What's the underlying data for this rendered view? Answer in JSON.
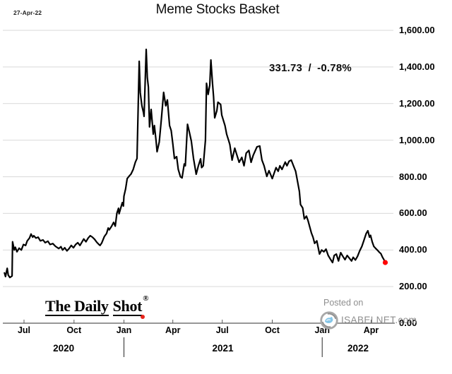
{
  "window": {
    "date_label": "27-Apr-22"
  },
  "chart_data": {
    "type": "line",
    "title": "Meme Stocks Basket",
    "annotation": {
      "text": "331.73 / -0.78%",
      "value": 331.73,
      "change_pct": -0.78
    },
    "grid": true,
    "legend": false,
    "x_axis": {
      "unit": "days_since_2020-06-01",
      "range": [
        -9,
        710
      ],
      "ticks": [
        {
          "t": 30,
          "label": "Jul"
        },
        {
          "t": 122,
          "label": "Oct"
        },
        {
          "t": 214,
          "label": "Jan"
        },
        {
          "t": 304,
          "label": "Apr"
        },
        {
          "t": 395,
          "label": "Jul"
        },
        {
          "t": 487,
          "label": "Oct"
        },
        {
          "t": 579,
          "label": "Jan"
        },
        {
          "t": 669,
          "label": "Apr"
        }
      ],
      "year_labels": [
        {
          "t": 103,
          "label": "2020"
        },
        {
          "t": 396,
          "label": "2021"
        },
        {
          "t": 645,
          "label": "2022"
        }
      ],
      "year_separators": [
        214,
        579
      ]
    },
    "y_axis": {
      "range": [
        0,
        1600
      ],
      "tick_step": 200,
      "tick_labels": [
        "0.00",
        "200.00",
        "400.00",
        "600.00",
        "800.00",
        "1,000.00",
        "1,200.00",
        "1,400.00",
        "1,600.00"
      ]
    },
    "series": [
      {
        "name": "Meme Stocks Basket",
        "color": "#000000",
        "points": [
          [
            -6,
            275
          ],
          [
            -4,
            255
          ],
          [
            -1,
            300
          ],
          [
            1,
            262
          ],
          [
            4,
            250
          ],
          [
            8,
            258
          ],
          [
            9,
            445
          ],
          [
            12,
            400
          ],
          [
            14,
            415
          ],
          [
            17,
            390
          ],
          [
            21,
            410
          ],
          [
            25,
            400
          ],
          [
            29,
            430
          ],
          [
            33,
            425
          ],
          [
            36,
            450
          ],
          [
            40,
            465
          ],
          [
            43,
            487
          ],
          [
            46,
            470
          ],
          [
            48,
            478
          ],
          [
            52,
            465
          ],
          [
            56,
            470
          ],
          [
            60,
            450
          ],
          [
            65,
            455
          ],
          [
            69,
            440
          ],
          [
            74,
            448
          ],
          [
            78,
            430
          ],
          [
            83,
            435
          ],
          [
            88,
            420
          ],
          [
            94,
            408
          ],
          [
            98,
            418
          ],
          [
            101,
            400
          ],
          [
            105,
            412
          ],
          [
            109,
            395
          ],
          [
            113,
            408
          ],
          [
            117,
            425
          ],
          [
            121,
            412
          ],
          [
            125,
            430
          ],
          [
            129,
            440
          ],
          [
            133,
            425
          ],
          [
            137,
            445
          ],
          [
            140,
            460
          ],
          [
            144,
            445
          ],
          [
            148,
            465
          ],
          [
            152,
            478
          ],
          [
            156,
            470
          ],
          [
            160,
            458
          ],
          [
            164,
            442
          ],
          [
            168,
            430
          ],
          [
            170,
            425
          ],
          [
            173,
            438
          ],
          [
            178,
            474
          ],
          [
            182,
            490
          ],
          [
            185,
            520
          ],
          [
            187,
            510
          ],
          [
            191,
            528
          ],
          [
            195,
            551
          ],
          [
            198,
            530
          ],
          [
            201,
            601
          ],
          [
            204,
            628
          ],
          [
            205,
            598
          ],
          [
            211,
            659
          ],
          [
            213,
            640
          ],
          [
            214,
            694
          ],
          [
            217,
            733
          ],
          [
            220,
            790
          ],
          [
            224,
            805
          ],
          [
            227,
            815
          ],
          [
            231,
            840
          ],
          [
            235,
            880
          ],
          [
            238,
            900
          ],
          [
            242,
            1431
          ],
          [
            244,
            1260
          ],
          [
            247,
            1188
          ],
          [
            250,
            1150
          ],
          [
            251,
            1130
          ],
          [
            255,
            1496
          ],
          [
            257,
            1342
          ],
          [
            259,
            1290
          ],
          [
            261,
            1072
          ],
          [
            264,
            1168
          ],
          [
            268,
            1033
          ],
          [
            270,
            1080
          ],
          [
            273,
            1000
          ],
          [
            275,
            937
          ],
          [
            279,
            990
          ],
          [
            283,
            1120
          ],
          [
            287,
            1261
          ],
          [
            291,
            1188
          ],
          [
            294,
            1220
          ],
          [
            298,
            1080
          ],
          [
            301,
            1052
          ],
          [
            304,
            980
          ],
          [
            307,
            900
          ],
          [
            311,
            910
          ],
          [
            314,
            840
          ],
          [
            318,
            800
          ],
          [
            321,
            794
          ],
          [
            325,
            870
          ],
          [
            327,
            860
          ],
          [
            331,
            1087
          ],
          [
            334,
            1050
          ],
          [
            338,
            995
          ],
          [
            342,
            900
          ],
          [
            347,
            814
          ],
          [
            351,
            860
          ],
          [
            355,
            898
          ],
          [
            357,
            850
          ],
          [
            360,
            860
          ],
          [
            364,
            1000
          ],
          [
            366,
            1311
          ],
          [
            369,
            1250
          ],
          [
            372,
            1300
          ],
          [
            374,
            1438
          ],
          [
            377,
            1310
          ],
          [
            379,
            1237
          ],
          [
            381,
            1122
          ],
          [
            385,
            1160
          ],
          [
            387,
            1207
          ],
          [
            392,
            1195
          ],
          [
            394,
            1137
          ],
          [
            400,
            1079
          ],
          [
            403,
            1033
          ],
          [
            407,
            995
          ],
          [
            409,
            975
          ],
          [
            413,
            891
          ],
          [
            418,
            956
          ],
          [
            422,
            918
          ],
          [
            426,
            879
          ],
          [
            431,
            906
          ],
          [
            435,
            860
          ],
          [
            439,
            929
          ],
          [
            444,
            944
          ],
          [
            448,
            879
          ],
          [
            452,
            918
          ],
          [
            459,
            964
          ],
          [
            464,
            968
          ],
          [
            468,
            891
          ],
          [
            472,
            860
          ],
          [
            477,
            802
          ],
          [
            481,
            833
          ],
          [
            487,
            790
          ],
          [
            494,
            850
          ],
          [
            498,
            830
          ],
          [
            501,
            860
          ],
          [
            505,
            840
          ],
          [
            511,
            880
          ],
          [
            514,
            860
          ],
          [
            518,
            885
          ],
          [
            522,
            891
          ],
          [
            526,
            860
          ],
          [
            530,
            830
          ],
          [
            533,
            783
          ],
          [
            537,
            720
          ],
          [
            539,
            648
          ],
          [
            543,
            630
          ],
          [
            546,
            570
          ],
          [
            550,
            585
          ],
          [
            553,
            560
          ],
          [
            559,
            493
          ],
          [
            562,
            470
          ],
          [
            565,
            436
          ],
          [
            569,
            450
          ],
          [
            574,
            378
          ],
          [
            578,
            400
          ],
          [
            582,
            390
          ],
          [
            586,
            405
          ],
          [
            590,
            370
          ],
          [
            594,
            350
          ],
          [
            598,
            331
          ],
          [
            601,
            370
          ],
          [
            605,
            378
          ],
          [
            609,
            340
          ],
          [
            613,
            385
          ],
          [
            617,
            365
          ],
          [
            621,
            347
          ],
          [
            625,
            370
          ],
          [
            629,
            355
          ],
          [
            633,
            340
          ],
          [
            636,
            360
          ],
          [
            640,
            345
          ],
          [
            644,
            365
          ],
          [
            648,
            395
          ],
          [
            652,
            420
          ],
          [
            656,
            455
          ],
          [
            660,
            490
          ],
          [
            663,
            505
          ],
          [
            666,
            470
          ],
          [
            668,
            480
          ],
          [
            671,
            445
          ],
          [
            674,
            420
          ],
          [
            677,
            410
          ],
          [
            681,
            398
          ],
          [
            684,
            388
          ],
          [
            687,
            380
          ],
          [
            690,
            360
          ],
          [
            692,
            350
          ],
          [
            695,
            331.73
          ]
        ]
      }
    ],
    "end_marker": {
      "color": "#ff0000",
      "value": 331.73
    }
  },
  "watermarks": {
    "daily_shot": {
      "part1": "The Daily",
      "part2": "Shot",
      "reg": "®"
    },
    "posted_on": "Posted on",
    "isabelnet": "ISABELNET.com"
  },
  "colors": {
    "line": "#000000",
    "grid": "#d9d9d9",
    "axis": "#595959",
    "marker_red": "#ff0000",
    "logo_red": "#e8251c",
    "watermark_gray": "#8e8e8e",
    "bird_blue": "#85c6e8"
  }
}
